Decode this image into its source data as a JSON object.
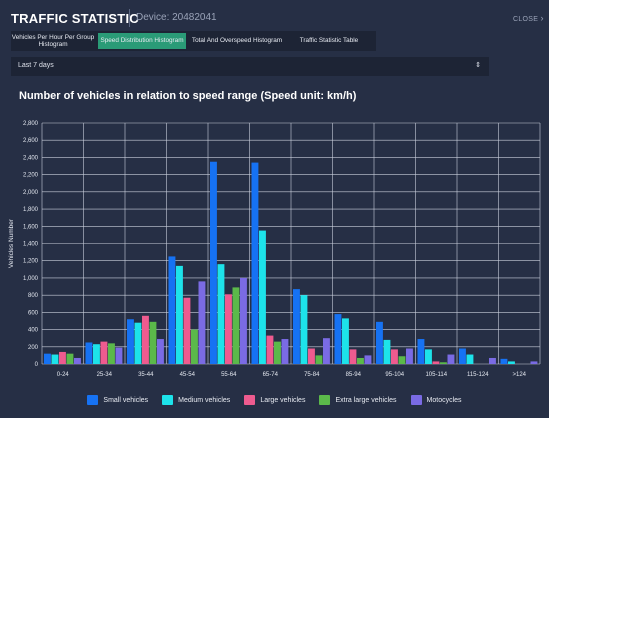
{
  "header": {
    "title": "TRAFFIC STATISTIC",
    "device": "Device: 20482041",
    "close_label": "CLOSE"
  },
  "tabs": [
    {
      "label": "Vehicles Per Hour Per Group Histogram",
      "active": false
    },
    {
      "label": "Speed Distribution Histogram",
      "active": true
    },
    {
      "label": "Total And Overspeed Histogram",
      "active": false
    },
    {
      "label": "Traffic Statistic Table",
      "active": false
    }
  ],
  "range_select": {
    "value": "Last 7 days"
  },
  "chart_title": "Number of vehicles in relation to speed range (Speed unit: km/h)",
  "icons": {
    "close": "chevron-right-icon",
    "select": "up-down-caret-icon"
  },
  "chart_data": {
    "type": "bar",
    "ylabel": "Vehicles Number",
    "xlabel": "",
    "ylim": [
      0,
      2800
    ],
    "yticks": [
      0,
      200,
      400,
      600,
      800,
      1000,
      1200,
      1400,
      1600,
      1800,
      2000,
      2200,
      2400,
      2600,
      2800
    ],
    "ytick_labels": [
      "0",
      "200",
      "400",
      "600",
      "800",
      "1,000",
      "1,200",
      "1,400",
      "1,600",
      "1,800",
      "2,000",
      "2,200",
      "2,400",
      "2,600",
      "2,800"
    ],
    "grid": true,
    "legend": "bottom",
    "categories": [
      "0-24",
      "25-34",
      "35-44",
      "45-54",
      "55-64",
      "65-74",
      "75-84",
      "85-94",
      "95-104",
      "105-114",
      "115-124",
      ">124"
    ],
    "series": [
      {
        "name": "Small vehicles",
        "color": "#1672f3",
        "values": [
          120,
          250,
          520,
          1250,
          2350,
          2340,
          870,
          580,
          490,
          290,
          180,
          60
        ]
      },
      {
        "name": "Medium vehicles",
        "color": "#1de3ea",
        "values": [
          110,
          230,
          480,
          1140,
          1160,
          1550,
          800,
          530,
          280,
          170,
          110,
          30
        ]
      },
      {
        "name": "Large vehicles",
        "color": "#ee5b8f",
        "values": [
          140,
          260,
          560,
          770,
          810,
          330,
          180,
          170,
          170,
          30,
          0,
          0
        ]
      },
      {
        "name": "Extra large vehicles",
        "color": "#5bb94a",
        "values": [
          120,
          240,
          490,
          400,
          890,
          260,
          100,
          70,
          90,
          20,
          0,
          0
        ]
      },
      {
        "name": "Motocycles",
        "color": "#7a6be4",
        "values": [
          70,
          190,
          290,
          960,
          1000,
          290,
          300,
          100,
          180,
          110,
          70,
          30
        ]
      }
    ]
  }
}
